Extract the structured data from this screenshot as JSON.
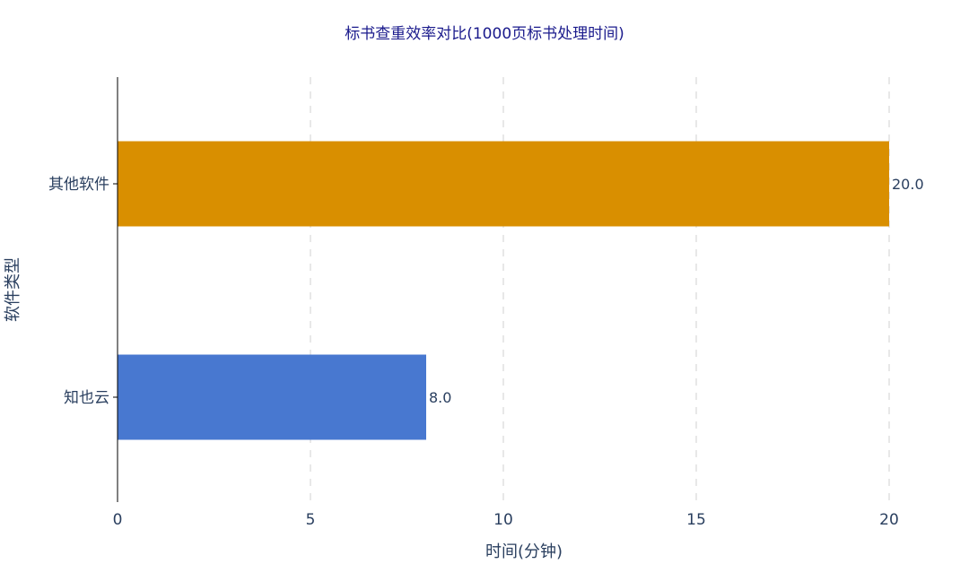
{
  "colors": {
    "other_bar": "#D98F00",
    "zhiyeyun_bar": "#4878D0",
    "title": "#1a1a8c",
    "text": "#2a3f5f",
    "grid": "#d0d0d0",
    "axis": "#000000"
  },
  "chart_data": {
    "type": "bar",
    "orientation": "horizontal",
    "title": "标书查重效率对比(1000页标书处理时间)",
    "xlabel": "时间(分钟)",
    "ylabel": "软件类型",
    "categories": [
      "其他软件",
      "知也云"
    ],
    "values": [
      20.0,
      8.0
    ],
    "value_labels": [
      "20.0",
      "8.0"
    ],
    "xlim": [
      0,
      20
    ],
    "xticks": [
      0,
      5,
      10,
      15,
      20
    ],
    "xtick_labels": [
      "0",
      "5",
      "10",
      "15",
      "20"
    ],
    "grid": "vertical-dashed",
    "legend": "none"
  }
}
